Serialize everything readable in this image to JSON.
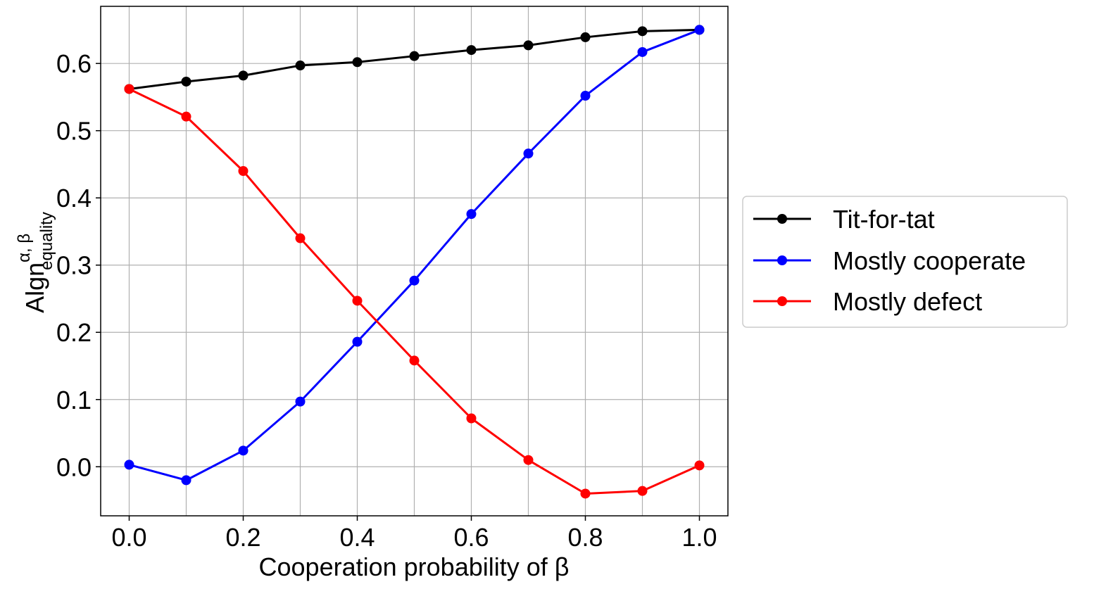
{
  "chart_data": {
    "type": "line",
    "x": [
      0.0,
      0.1,
      0.2,
      0.3,
      0.4,
      0.5,
      0.6,
      0.7,
      0.8,
      0.9,
      1.0
    ],
    "series": [
      {
        "name": "Tit-for-tat",
        "color": "#000000",
        "values": [
          0.562,
          0.573,
          0.582,
          0.597,
          0.602,
          0.611,
          0.62,
          0.627,
          0.639,
          0.648,
          0.65
        ]
      },
      {
        "name": "Mostly cooperate",
        "color": "#0000ff",
        "values": [
          0.003,
          -0.02,
          0.024,
          0.097,
          0.186,
          0.277,
          0.376,
          0.466,
          0.552,
          0.617,
          0.65
        ]
      },
      {
        "name": "Mostly defect",
        "color": "#ff0000",
        "values": [
          0.562,
          0.521,
          0.44,
          0.34,
          0.247,
          0.158,
          0.072,
          0.01,
          -0.04,
          -0.036,
          0.002
        ]
      }
    ],
    "xlabel": "Cooperation probability of β",
    "ylabel": {
      "base": "Algn",
      "superscript": "α, β",
      "subscript": "equality"
    },
    "xlim": [
      -0.05,
      1.05
    ],
    "ylim": [
      -0.073,
      0.685
    ],
    "xticks": [
      0.0,
      0.2,
      0.4,
      0.6,
      0.8,
      1.0
    ],
    "xtick_labels": [
      "0.0",
      "0.2",
      "0.4",
      "0.6",
      "0.8",
      "1.0"
    ],
    "yticks": [
      0.0,
      0.1,
      0.2,
      0.3,
      0.4,
      0.5,
      0.6
    ],
    "ytick_labels": [
      "0.0",
      "0.1",
      "0.2",
      "0.3",
      "0.4",
      "0.5",
      "0.6"
    ],
    "vertical_grid_x": [
      0.0,
      0.1,
      0.2,
      0.3,
      0.4,
      0.5,
      0.6,
      0.7,
      0.8,
      0.9,
      1.0
    ],
    "grid": true,
    "legend_position": "right, outside plot"
  }
}
